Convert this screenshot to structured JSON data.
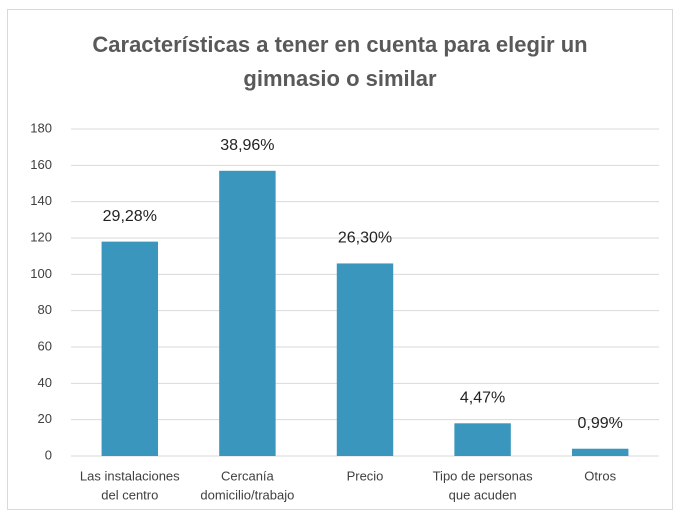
{
  "chart_data": {
    "type": "bar",
    "title": "Características a tener en cuenta para elegir un gimnasio o similar",
    "categories": [
      [
        "Las instalaciones",
        "del centro"
      ],
      [
        "Cercanía",
        "domicilio/trabajo"
      ],
      [
        "Precio"
      ],
      [
        "Tipo de personas",
        "que acuden"
      ],
      [
        "Otros"
      ]
    ],
    "values": [
      118,
      157,
      106,
      18,
      4
    ],
    "data_labels": [
      "29,28%",
      "38,96%",
      "26,30%",
      "4,47%",
      "0,99%"
    ],
    "color": "#3a96bd",
    "ylim": [
      0,
      180
    ],
    "yticks": [
      0,
      20,
      40,
      60,
      80,
      100,
      120,
      140,
      160,
      180
    ],
    "grid": true
  }
}
